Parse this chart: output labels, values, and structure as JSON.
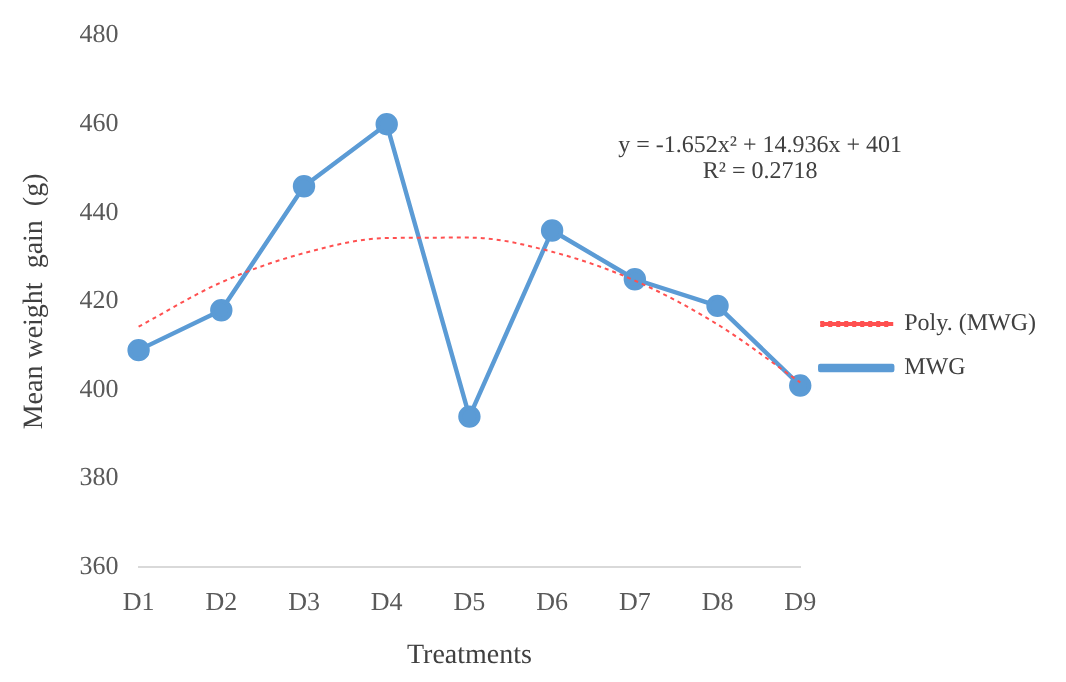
{
  "chart_data": {
    "type": "line",
    "xlabel": "Treatments",
    "ylabel": "Mean weight  gain  (g)",
    "categories": [
      "D1",
      "D2",
      "D3",
      "D4",
      "D5",
      "D6",
      "D7",
      "D8",
      "D9"
    ],
    "series": [
      {
        "name": "MWG",
        "color": "#5b9bd5",
        "values": [
          409,
          418,
          446,
          460,
          394,
          436,
          425,
          419,
          401
        ],
        "marker": "circle",
        "line_style": "solid"
      },
      {
        "name": "Poly. (MWG)",
        "color": "#ff5050",
        "values": [
          414.3,
          424.3,
          430.9,
          434.3,
          434.4,
          431.2,
          424.7,
          414.8,
          401.7
        ],
        "marker": "none",
        "line_style": "dotted"
      }
    ],
    "ylim": [
      360,
      480
    ],
    "yticks": [
      360,
      380,
      400,
      420,
      440,
      460,
      480
    ],
    "grid": false,
    "legend": "right",
    "annotations": [
      "y = -1.652x² + 14.936x + 401",
      "R² = 0.2718"
    ]
  }
}
